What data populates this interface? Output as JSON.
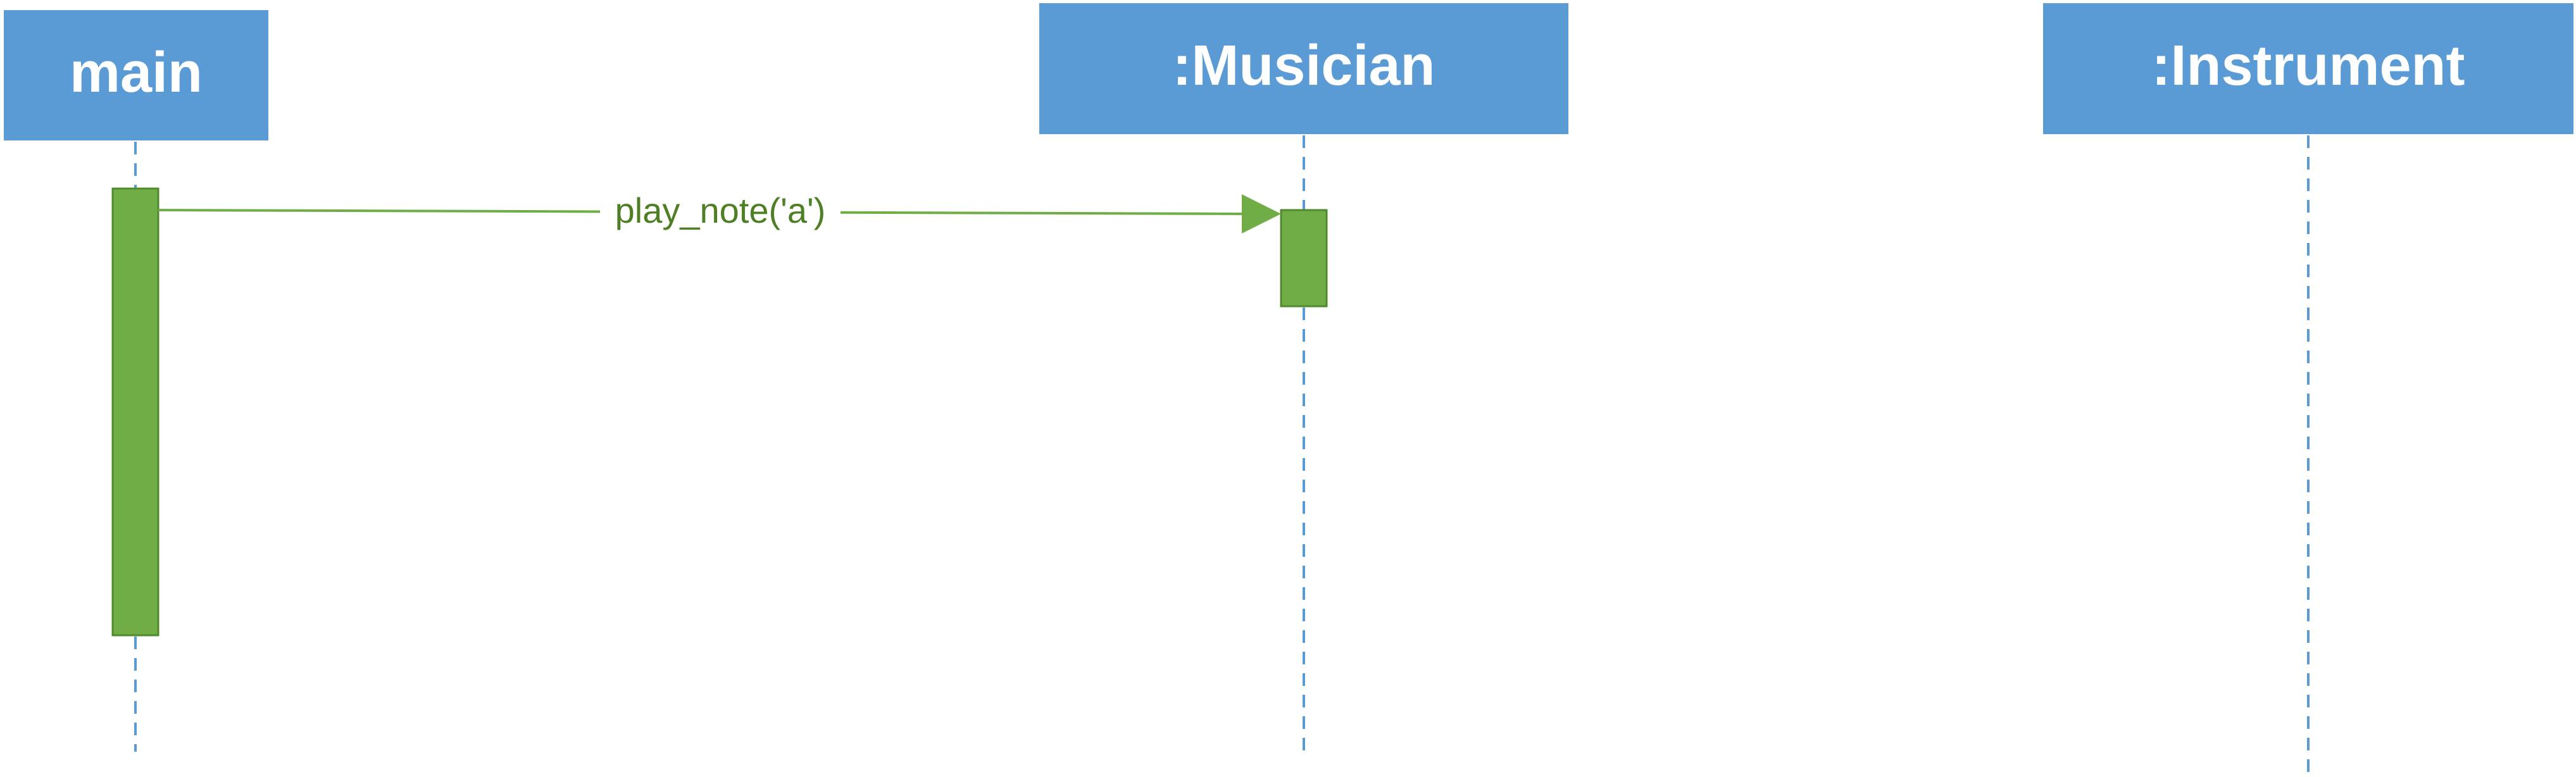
{
  "diagram": {
    "type": "UML sequence diagram",
    "participants": [
      {
        "id": "main",
        "label": "main"
      },
      {
        "id": "musician",
        "label": ":Musician"
      },
      {
        "id": "instrument",
        "label": ":Instrument"
      }
    ],
    "messages": [
      {
        "from": "main",
        "to": "musician",
        "label": "play_note('a')"
      }
    ],
    "colors": {
      "participant_fill": "#5b9bd5",
      "participant_text": "#ffffff",
      "lifeline": "#5b9bd5",
      "activation_fill": "#70ad47",
      "activation_stroke": "#4f8a2a",
      "message_line": "#70ad47",
      "message_text": "#4f7f24"
    }
  }
}
